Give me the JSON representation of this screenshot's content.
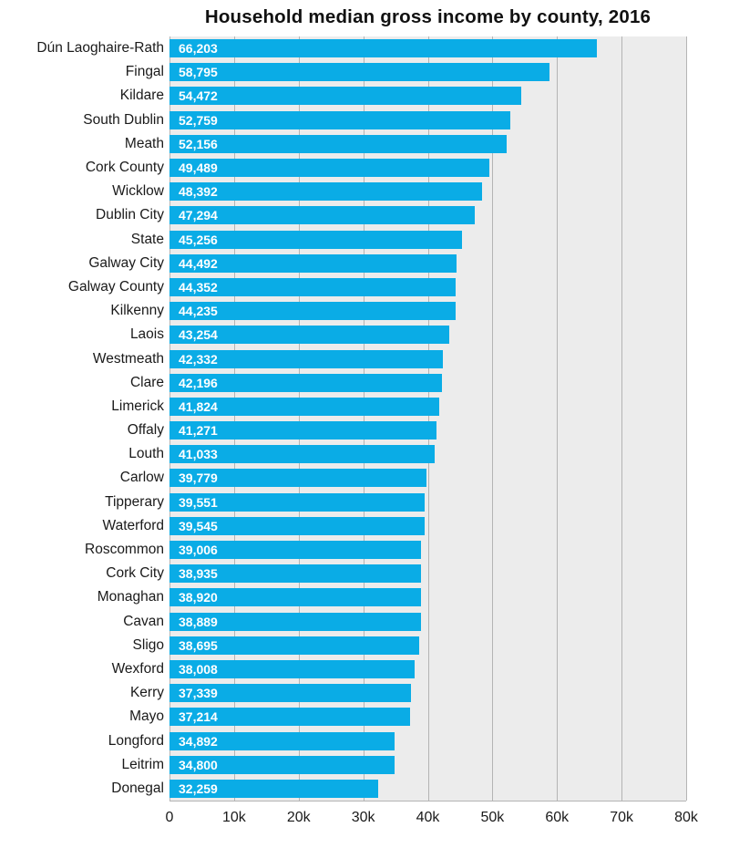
{
  "page": {
    "background": "#ffffff"
  },
  "chart_data": {
    "type": "bar",
    "orientation": "horizontal",
    "title": "Household median gross income by county, 2016",
    "categories": [
      "Dún Laoghaire-Rath",
      "Fingal",
      "Kildare",
      "South Dublin",
      "Meath",
      "Cork County",
      "Wicklow",
      "Dublin City",
      "State",
      "Galway City",
      "Galway County",
      "Kilkenny",
      "Laois",
      "Westmeath",
      "Clare",
      "Limerick",
      "Offaly",
      "Louth",
      "Carlow",
      "Tipperary",
      "Waterford",
      "Roscommon",
      "Cork City",
      "Monaghan",
      "Cavan",
      "Sligo",
      "Wexford",
      "Kerry",
      "Mayo",
      "Longford",
      "Leitrim",
      "Donegal"
    ],
    "values": [
      66203,
      58795,
      54472,
      52759,
      52156,
      49489,
      48392,
      47294,
      45256,
      44492,
      44352,
      44235,
      43254,
      42332,
      42196,
      41824,
      41271,
      41033,
      39779,
      39551,
      39545,
      39006,
      38935,
      38920,
      38889,
      38695,
      38008,
      37339,
      37214,
      34892,
      34800,
      32259
    ],
    "value_labels": [
      "66,203",
      "58,795",
      "54,472",
      "52,759",
      "52,156",
      "49,489",
      "48,392",
      "47,294",
      "45,256",
      "44,492",
      "44,352",
      "44,235",
      "43,254",
      "42,332",
      "42,196",
      "41,824",
      "41,271",
      "41,033",
      "39,779",
      "39,551",
      "39,545",
      "39,006",
      "38,935",
      "38,920",
      "38,889",
      "38,695",
      "38,008",
      "37,339",
      "37,214",
      "34,892",
      "34,800",
      "32,259"
    ],
    "xlabel": "",
    "ylabel": "",
    "xlim": [
      0,
      80000
    ],
    "x_ticks": [
      {
        "value": 0,
        "label": "0"
      },
      {
        "value": 10000,
        "label": "10k"
      },
      {
        "value": 20000,
        "label": "20k"
      },
      {
        "value": 30000,
        "label": "30k"
      },
      {
        "value": 40000,
        "label": "40k"
      },
      {
        "value": 50000,
        "label": "50k"
      },
      {
        "value": 60000,
        "label": "60k"
      },
      {
        "value": 70000,
        "label": "70k"
      },
      {
        "value": 80000,
        "label": "80k"
      }
    ],
    "grid": true,
    "legend": "none",
    "colors": {
      "bar": "#0aace6",
      "plot_bg": "#ececec",
      "gridline": "#b4b4b4",
      "value_label": "#ffffff",
      "text": "#1a1a1a"
    }
  }
}
